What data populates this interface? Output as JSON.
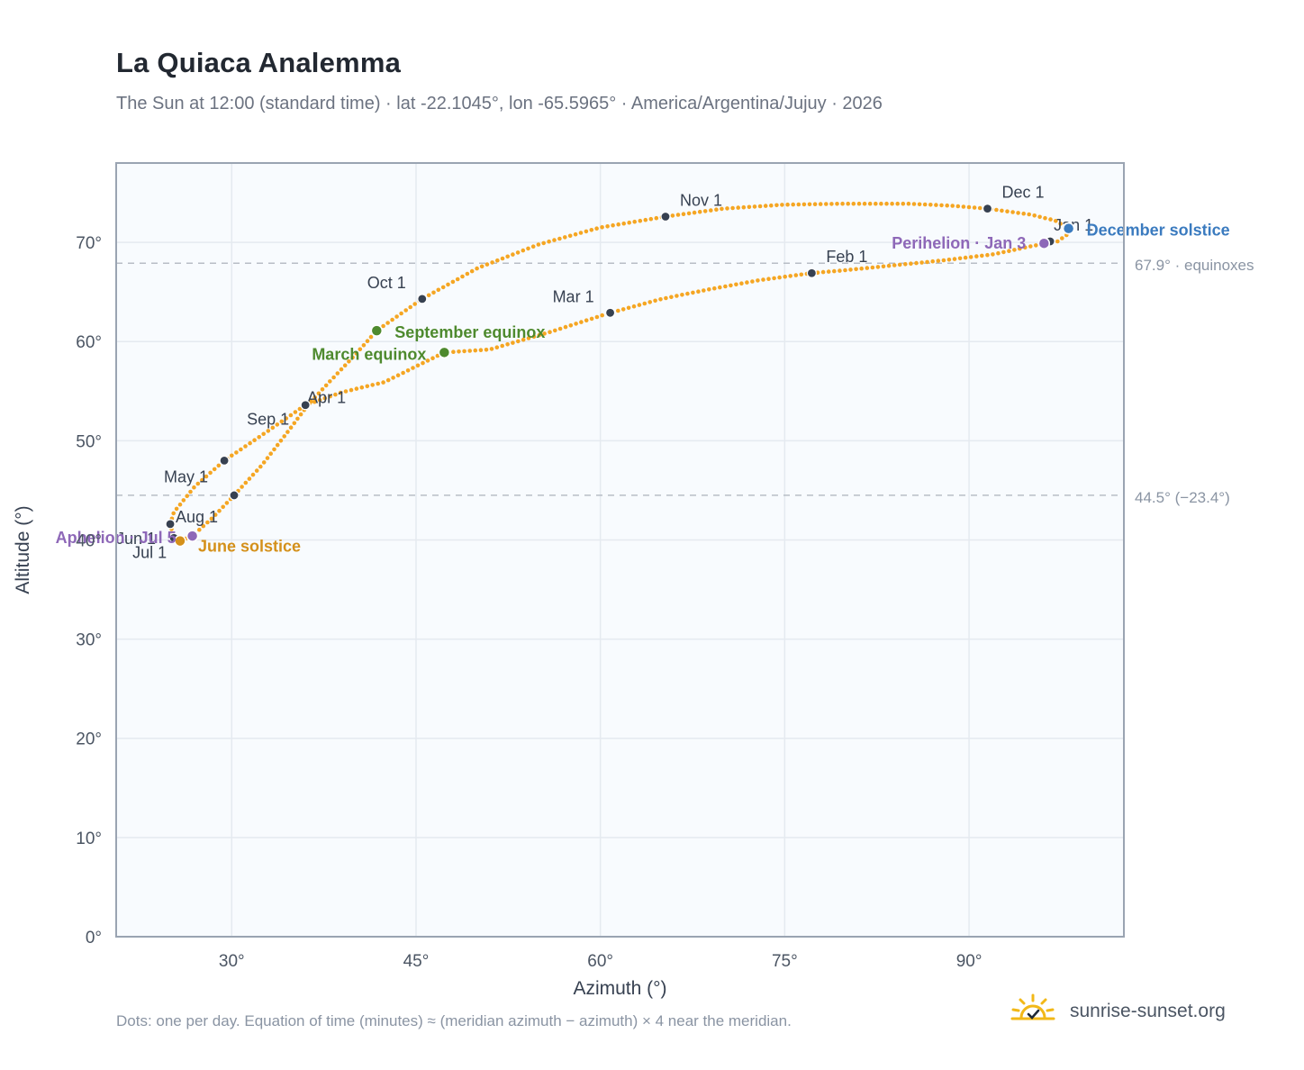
{
  "title": "La Quiaca Analemma",
  "subtitle": "The Sun at 12:00 (standard time) · lat -22.1045°, lon -65.5965° · America/Argentina/Jujuy · 2026",
  "footnote": "Dots: one per day. Equation of time (minutes) ≈ (meridian azimuth − azimuth) × 4 near the meridian.",
  "brand": {
    "name": "sunrise-sunset.org",
    "icon": "sun-logo-icon"
  },
  "colors": {
    "curve": "#f5a623",
    "month_marker": "#374151",
    "equinox": "#4e8a2e",
    "june_solstice": "#d4901a",
    "december_solstice": "#3b7bbf",
    "apsis": "#8e68b8",
    "plot_bg": "#f8fbfe",
    "grid": "#e5eaf0",
    "ref_line": "#b8bec6"
  },
  "chart_data": {
    "type": "scatter",
    "xlabel": "Azimuth (°)",
    "ylabel": "Altitude (°)",
    "xlim": [
      20.6,
      102.6
    ],
    "ylim": [
      0,
      78
    ],
    "x_ticks": [
      30,
      45,
      60,
      75,
      90
    ],
    "x_tick_labels": [
      "30°",
      "45°",
      "60°",
      "75°",
      "90°"
    ],
    "y_ticks": [
      0,
      10,
      20,
      30,
      40,
      50,
      60,
      70
    ],
    "y_tick_labels": [
      "0°",
      "10°",
      "20°",
      "30°",
      "40°",
      "50°",
      "60°",
      "70°"
    ],
    "grid": true,
    "reference_lines": [
      {
        "y": 67.9,
        "label": "67.9° · equinoxes"
      },
      {
        "y": 44.5,
        "label": "44.5° (−23.4°)"
      }
    ],
    "path": [
      {
        "x": 97.2,
        "y": 70.1
      },
      {
        "x": 95.0,
        "y": 69.6
      },
      {
        "x": 92.0,
        "y": 68.8
      },
      {
        "x": 88.0,
        "y": 68.2
      },
      {
        "x": 84.0,
        "y": 67.7
      },
      {
        "x": 80.0,
        "y": 67.2
      },
      {
        "x": 77.2,
        "y": 66.9
      },
      {
        "x": 73.0,
        "y": 66.2
      },
      {
        "x": 69.0,
        "y": 65.3
      },
      {
        "x": 65.0,
        "y": 64.3
      },
      {
        "x": 60.8,
        "y": 62.9
      },
      {
        "x": 56.0,
        "y": 61.0
      },
      {
        "x": 51.0,
        "y": 59.2
      },
      {
        "x": 47.3,
        "y": 58.9
      },
      {
        "x": 42.4,
        "y": 55.9
      },
      {
        "x": 39.0,
        "y": 54.9
      },
      {
        "x": 36.0,
        "y": 53.6
      },
      {
        "x": 32.5,
        "y": 50.6
      },
      {
        "x": 29.4,
        "y": 48.0
      },
      {
        "x": 27.0,
        "y": 45.4
      },
      {
        "x": 25.3,
        "y": 42.8
      },
      {
        "x": 25.0,
        "y": 41.6
      },
      {
        "x": 25.3,
        "y": 40.2
      },
      {
        "x": 25.8,
        "y": 39.9
      },
      {
        "x": 26.8,
        "y": 40.4
      },
      {
        "x": 28.5,
        "y": 42.3
      },
      {
        "x": 30.2,
        "y": 44.5
      },
      {
        "x": 32.5,
        "y": 47.6
      },
      {
        "x": 34.5,
        "y": 50.8
      },
      {
        "x": 36.2,
        "y": 53.6
      },
      {
        "x": 38.0,
        "y": 56.0
      },
      {
        "x": 40.0,
        "y": 58.6
      },
      {
        "x": 41.8,
        "y": 61.1
      },
      {
        "x": 45.5,
        "y": 64.3
      },
      {
        "x": 50.0,
        "y": 67.4
      },
      {
        "x": 55.0,
        "y": 69.8
      },
      {
        "x": 60.0,
        "y": 71.5
      },
      {
        "x": 65.3,
        "y": 72.6
      },
      {
        "x": 70.0,
        "y": 73.4
      },
      {
        "x": 75.0,
        "y": 73.8
      },
      {
        "x": 80.0,
        "y": 73.9
      },
      {
        "x": 85.0,
        "y": 73.9
      },
      {
        "x": 88.5,
        "y": 73.7
      },
      {
        "x": 91.5,
        "y": 73.4
      },
      {
        "x": 95.0,
        "y": 72.8
      },
      {
        "x": 97.0,
        "y": 72.2
      },
      {
        "x": 98.1,
        "y": 71.4
      },
      {
        "x": 98.0,
        "y": 70.8
      },
      {
        "x": 97.2,
        "y": 70.1
      }
    ],
    "month_markers": [
      {
        "label": "Jan 1",
        "x": 96.6,
        "y": 70.1,
        "dx": 4,
        "dy": -12,
        "anchor": "start"
      },
      {
        "label": "Feb 1",
        "x": 77.2,
        "y": 66.9,
        "dx": 16,
        "dy": -12,
        "anchor": "start"
      },
      {
        "label": "Mar 1",
        "x": 60.8,
        "y": 62.9,
        "dx": -18,
        "dy": -12,
        "anchor": "end"
      },
      {
        "label": "Apr 1",
        "x": 36.0,
        "y": 53.6,
        "dx": 2,
        "dy": -2,
        "anchor": "start"
      },
      {
        "label": "May 1",
        "x": 29.4,
        "y": 48.0,
        "dx": -18,
        "dy": 24,
        "anchor": "end"
      },
      {
        "label": "Jun 1",
        "x": 25.0,
        "y": 41.6,
        "dx": -16,
        "dy": 22,
        "anchor": "end"
      },
      {
        "label": "Jul 1",
        "x": 25.3,
        "y": 40.2,
        "dx": -8,
        "dy": 22,
        "anchor": "end"
      },
      {
        "label": "Aug 1",
        "x": 30.2,
        "y": 44.5,
        "dx": -18,
        "dy": 30,
        "anchor": "end"
      },
      {
        "label": "Sep 1",
        "x": 36.0,
        "y": 53.6,
        "dx": -18,
        "dy": 22,
        "anchor": "end"
      },
      {
        "label": "Oct 1",
        "x": 45.5,
        "y": 64.3,
        "dx": -18,
        "dy": -12,
        "anchor": "end"
      },
      {
        "label": "Nov 1",
        "x": 65.3,
        "y": 72.6,
        "dx": 16,
        "dy": -12,
        "anchor": "start"
      },
      {
        "label": "Dec 1",
        "x": 91.5,
        "y": 73.4,
        "dx": 16,
        "dy": -12,
        "anchor": "start"
      }
    ],
    "events": [
      {
        "label": "March equinox",
        "x": 47.3,
        "y": 58.9,
        "kind": "equinox",
        "dx": -20,
        "dy": 8,
        "anchor": "end"
      },
      {
        "label": "September equinox",
        "x": 41.8,
        "y": 61.1,
        "kind": "equinox",
        "dx": 20,
        "dy": 8,
        "anchor": "start"
      },
      {
        "label": "June solstice",
        "x": 25.8,
        "y": 39.9,
        "kind": "june_solstice",
        "dx": 20,
        "dy": 12,
        "anchor": "start"
      },
      {
        "label": "December solstice",
        "x": 98.1,
        "y": 71.4,
        "kind": "december_solstice",
        "dx": 20,
        "dy": 8,
        "anchor": "start"
      },
      {
        "label": "Aphelion · Jul 5",
        "x": 26.8,
        "y": 40.4,
        "kind": "apsis",
        "dx": -18,
        "dy": 8,
        "anchor": "end"
      },
      {
        "label": "Perihelion · Jan 3",
        "x": 96.1,
        "y": 69.9,
        "kind": "apsis",
        "dx": -20,
        "dy": 6,
        "anchor": "end"
      }
    ]
  }
}
